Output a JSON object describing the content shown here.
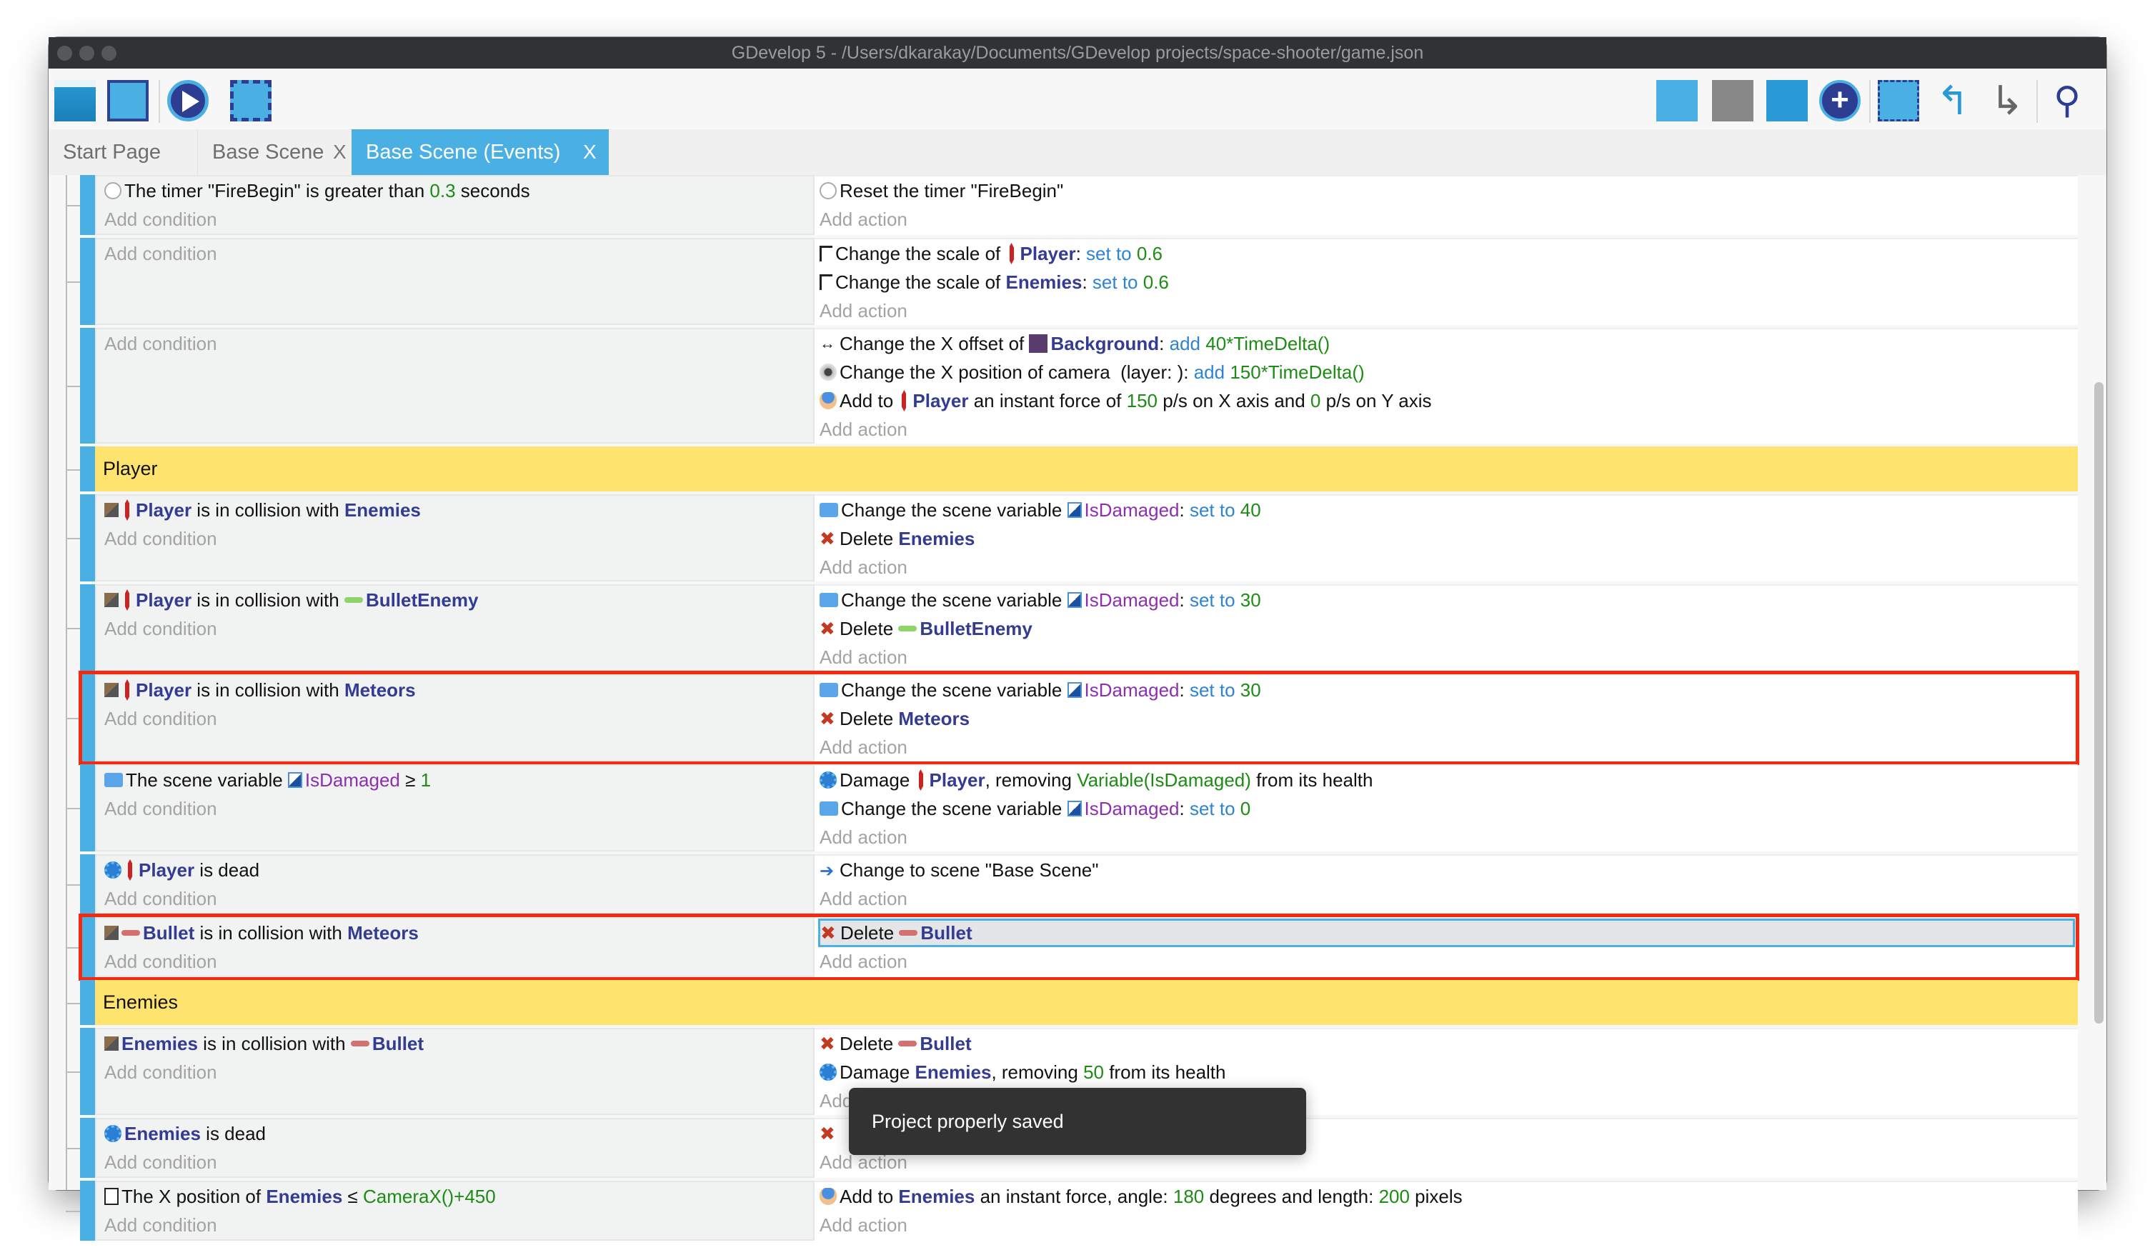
{
  "window": {
    "title": "GDevelop 5 - /Users/dkarakay/Documents/GDevelop projects/space-shooter/game.json"
  },
  "toolbar": {
    "left_icons": [
      "project-manager-icon",
      "scene-editor-icon",
      "preview-play-icon",
      "debugger-icon"
    ],
    "right_icons": [
      "add-event-icon",
      "add-sub-event-icon",
      "add-comment-icon",
      "add-other-icon",
      "delete-selection-icon",
      "undo-icon",
      "redo-icon",
      "search-icon"
    ]
  },
  "tabs": [
    {
      "label": "Start Page",
      "closable": false,
      "active": false
    },
    {
      "label": "Base Scene",
      "closable": true,
      "active": false
    },
    {
      "label": "Base Scene (Events)",
      "closable": true,
      "active": true
    }
  ],
  "tab_close": "X",
  "labels": {
    "add_condition": "Add condition",
    "add_action": "Add action"
  },
  "rows": [
    {
      "type": "event",
      "conditions": [
        {
          "icon": "timer",
          "parts": [
            {
              "t": "The timer \"FireBegin\" is greater than "
            },
            {
              "t": "0.3",
              "c": "num"
            },
            {
              "t": " seconds"
            }
          ]
        }
      ],
      "actions": [
        {
          "icon": "timer",
          "parts": [
            {
              "t": "Reset the timer \"FireBegin\""
            }
          ]
        }
      ]
    },
    {
      "type": "event",
      "conditions": [],
      "actions": [
        {
          "icon": "scale",
          "parts": [
            {
              "t": "Change the scale of "
            },
            {
              "icon": "ship"
            },
            {
              "t": "Player",
              "c": "obj"
            },
            {
              "t": ": "
            },
            {
              "t": "set to ",
              "c": "kw"
            },
            {
              "t": "0.6",
              "c": "num"
            }
          ]
        },
        {
          "icon": "scale",
          "parts": [
            {
              "t": "Change the scale of "
            },
            {
              "t": "Enemies",
              "c": "obj"
            },
            {
              "t": ": "
            },
            {
              "t": "set to ",
              "c": "kw"
            },
            {
              "t": "0.6",
              "c": "num"
            }
          ]
        }
      ]
    },
    {
      "type": "event",
      "conditions": [],
      "actions": [
        {
          "icon": "offset",
          "parts": [
            {
              "t": "Change the X offset of "
            },
            {
              "icon": "bg"
            },
            {
              "t": "Background",
              "c": "obj"
            },
            {
              "t": ": "
            },
            {
              "t": "add ",
              "c": "kw"
            },
            {
              "t": "40*TimeDelta()",
              "c": "num"
            }
          ]
        },
        {
          "icon": "camera",
          "parts": [
            {
              "t": "Change the X position of camera  (layer: ): "
            },
            {
              "t": "add ",
              "c": "kw"
            },
            {
              "t": "150*TimeDelta()",
              "c": "num"
            }
          ]
        },
        {
          "icon": "force",
          "parts": [
            {
              "t": "Add to "
            },
            {
              "icon": "ship"
            },
            {
              "t": "Player",
              "c": "obj"
            },
            {
              "t": " an instant force of "
            },
            {
              "t": "150",
              "c": "num"
            },
            {
              "t": " p/s on X axis and "
            },
            {
              "t": "0",
              "c": "num"
            },
            {
              "t": " p/s on Y axis"
            }
          ]
        }
      ]
    },
    {
      "type": "group",
      "title": "Player"
    },
    {
      "type": "event",
      "conditions": [
        {
          "icon": "collision",
          "parts": [
            {
              "icon": "ship"
            },
            {
              "t": "Player",
              "c": "obj"
            },
            {
              "t": " is in collision with "
            },
            {
              "t": "Enemies",
              "c": "obj"
            }
          ]
        }
      ],
      "actions": [
        {
          "icon": "var",
          "parts": [
            {
              "t": "Change the scene variable "
            },
            {
              "icon": "varbox"
            },
            {
              "t": "IsDamaged",
              "c": "var"
            },
            {
              "t": ": "
            },
            {
              "t": "set to ",
              "c": "kw"
            },
            {
              "t": "40",
              "c": "num"
            }
          ]
        },
        {
          "icon": "delete",
          "parts": [
            {
              "t": "Delete "
            },
            {
              "t": "Enemies",
              "c": "obj"
            }
          ]
        }
      ]
    },
    {
      "type": "event",
      "conditions": [
        {
          "icon": "collision",
          "parts": [
            {
              "icon": "ship"
            },
            {
              "t": "Player",
              "c": "obj"
            },
            {
              "t": " is in collision with "
            },
            {
              "icon": "bullet-green"
            },
            {
              "t": "BulletEnemy",
              "c": "obj"
            }
          ]
        }
      ],
      "actions": [
        {
          "icon": "var",
          "parts": [
            {
              "t": "Change the scene variable "
            },
            {
              "icon": "varbox"
            },
            {
              "t": "IsDamaged",
              "c": "var"
            },
            {
              "t": ": "
            },
            {
              "t": "set to ",
              "c": "kw"
            },
            {
              "t": "30",
              "c": "num"
            }
          ]
        },
        {
          "icon": "delete",
          "parts": [
            {
              "t": "Delete "
            },
            {
              "icon": "bullet-green"
            },
            {
              "t": "BulletEnemy",
              "c": "obj"
            }
          ]
        }
      ]
    },
    {
      "type": "event",
      "highlighted": true,
      "conditions": [
        {
          "icon": "collision",
          "parts": [
            {
              "icon": "ship"
            },
            {
              "t": "Player",
              "c": "obj"
            },
            {
              "t": " is in collision with "
            },
            {
              "t": "Meteors",
              "c": "obj"
            }
          ]
        }
      ],
      "actions": [
        {
          "icon": "var",
          "parts": [
            {
              "t": "Change the scene variable "
            },
            {
              "icon": "varbox"
            },
            {
              "t": "IsDamaged",
              "c": "var"
            },
            {
              "t": ": "
            },
            {
              "t": "set to ",
              "c": "kw"
            },
            {
              "t": "30",
              "c": "num"
            }
          ]
        },
        {
          "icon": "delete",
          "parts": [
            {
              "t": "Delete "
            },
            {
              "t": "Meteors",
              "c": "obj"
            }
          ]
        }
      ]
    },
    {
      "type": "event",
      "conditions": [
        {
          "icon": "var",
          "parts": [
            {
              "t": "The scene variable "
            },
            {
              "icon": "varbox"
            },
            {
              "t": "IsDamaged",
              "c": "var"
            },
            {
              "t": " ≥ "
            },
            {
              "t": "1",
              "c": "num"
            }
          ]
        }
      ],
      "actions": [
        {
          "icon": "gear",
          "parts": [
            {
              "t": "Damage "
            },
            {
              "icon": "ship"
            },
            {
              "t": "Player",
              "c": "obj"
            },
            {
              "t": ", removing "
            },
            {
              "t": "Variable(IsDamaged)",
              "c": "num"
            },
            {
              "t": " from its health"
            }
          ]
        },
        {
          "icon": "var",
          "parts": [
            {
              "t": "Change the scene variable "
            },
            {
              "icon": "varbox"
            },
            {
              "t": "IsDamaged",
              "c": "var"
            },
            {
              "t": ": "
            },
            {
              "t": "set to ",
              "c": "kw"
            },
            {
              "t": "0",
              "c": "num"
            }
          ]
        }
      ]
    },
    {
      "type": "event",
      "conditions": [
        {
          "icon": "gear",
          "parts": [
            {
              "icon": "ship"
            },
            {
              "t": "Player",
              "c": "obj"
            },
            {
              "t": " is dead"
            }
          ]
        }
      ],
      "actions": [
        {
          "icon": "scene",
          "parts": [
            {
              "t": "Change to scene \"Base Scene\""
            }
          ]
        }
      ]
    },
    {
      "type": "event",
      "highlighted": true,
      "conditions": [
        {
          "icon": "collision",
          "parts": [
            {
              "icon": "bullet-red"
            },
            {
              "t": "Bullet",
              "c": "obj"
            },
            {
              "t": " is in collision with "
            },
            {
              "t": "Meteors",
              "c": "obj"
            }
          ]
        }
      ],
      "actions": [
        {
          "icon": "delete",
          "selected": true,
          "parts": [
            {
              "t": "Delete "
            },
            {
              "icon": "bullet-red"
            },
            {
              "t": "Bullet",
              "c": "obj"
            }
          ]
        }
      ]
    },
    {
      "type": "group",
      "title": "Enemies"
    },
    {
      "type": "event",
      "conditions": [
        {
          "icon": "collision",
          "parts": [
            {
              "t": "Enemies",
              "c": "obj"
            },
            {
              "t": " is in collision with "
            },
            {
              "icon": "bullet-red"
            },
            {
              "t": "Bullet",
              "c": "obj"
            }
          ]
        }
      ],
      "actions": [
        {
          "icon": "delete",
          "parts": [
            {
              "t": "Delete "
            },
            {
              "icon": "bullet-red"
            },
            {
              "t": "Bullet",
              "c": "obj"
            }
          ]
        },
        {
          "icon": "gear",
          "parts": [
            {
              "t": "Damage "
            },
            {
              "t": "Enemies",
              "c": "obj"
            },
            {
              "t": ", removing "
            },
            {
              "t": "50",
              "c": "num"
            },
            {
              "t": " from its health"
            }
          ]
        }
      ]
    },
    {
      "type": "event",
      "conditions": [
        {
          "icon": "gear",
          "parts": [
            {
              "t": "Enemies",
              "c": "obj"
            },
            {
              "t": " is dead"
            }
          ]
        }
      ],
      "actions": [
        {
          "icon": "delete",
          "parts": []
        }
      ]
    },
    {
      "type": "event",
      "conditions": [
        {
          "icon": "pos",
          "parts": [
            {
              "t": "The X position of "
            },
            {
              "t": "Enemies",
              "c": "obj"
            },
            {
              "t": " ≤ "
            },
            {
              "t": "CameraX()+450",
              "c": "num"
            }
          ]
        }
      ],
      "actions": [
        {
          "icon": "force",
          "parts": [
            {
              "t": "Add to "
            },
            {
              "t": "Enemies",
              "c": "obj"
            },
            {
              "t": " an instant force, angle: "
            },
            {
              "t": "180",
              "c": "num"
            },
            {
              "t": " degrees and length: "
            },
            {
              "t": "200",
              "c": "num"
            },
            {
              "t": " pixels"
            }
          ]
        }
      ]
    }
  ],
  "toast": {
    "message": "Project properly saved"
  },
  "colors": {
    "accent": "#4ab0e4",
    "group": "#fee46e",
    "highlight": "#f5290f",
    "object": "#343b92",
    "number": "#1c8c14",
    "variable": "#8c2fb0",
    "keyword": "#2d83d6"
  }
}
